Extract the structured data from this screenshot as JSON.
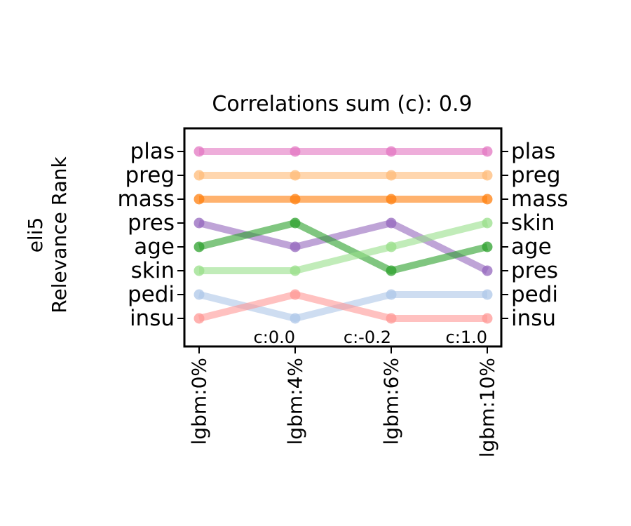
{
  "chart_data": {
    "type": "line",
    "title": "Correlations sum (c): 0.9",
    "ylabel": [
      "eli5",
      "Relevance Rank"
    ],
    "categories": [
      "lgbm:0%",
      "lgbm:4%",
      "lgbm:6%",
      "lgbm:10%"
    ],
    "rank_count": 8,
    "left_rank_labels": [
      "plas",
      "preg",
      "mass",
      "pres",
      "age",
      "skin",
      "pedi",
      "insu"
    ],
    "right_rank_labels": [
      "plas",
      "preg",
      "mass",
      "skin",
      "age",
      "pres",
      "pedi",
      "insu"
    ],
    "annotations": [
      {
        "x_index": 1,
        "text": "c:0.0"
      },
      {
        "x_index": 2,
        "text": "c:-0.2"
      },
      {
        "x_index": 3,
        "text": "c:1.0"
      }
    ],
    "series": [
      {
        "name": "plas",
        "color": "#e377c2",
        "ranks": [
          1,
          1,
          1,
          1
        ]
      },
      {
        "name": "preg",
        "color": "#ffbb78",
        "ranks": [
          2,
          2,
          2,
          2
        ]
      },
      {
        "name": "mass",
        "color": "#ff7f0e",
        "ranks": [
          3,
          3,
          3,
          3
        ]
      },
      {
        "name": "pres",
        "color": "#9467bd",
        "ranks": [
          4,
          5,
          4,
          6
        ]
      },
      {
        "name": "age",
        "color": "#2ca02c",
        "ranks": [
          5,
          4,
          6,
          5
        ]
      },
      {
        "name": "skin",
        "color": "#98df8a",
        "ranks": [
          6,
          6,
          5,
          4
        ]
      },
      {
        "name": "pedi",
        "color": "#aec7e8",
        "ranks": [
          7,
          8,
          7,
          7
        ]
      },
      {
        "name": "insu",
        "color": "#ff9896",
        "ranks": [
          8,
          7,
          8,
          8
        ]
      }
    ],
    "grid": false,
    "legend": "none"
  }
}
